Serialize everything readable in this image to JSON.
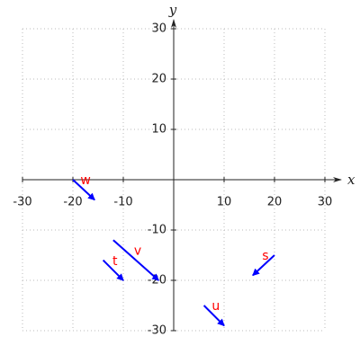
{
  "chart_data": {
    "type": "quiver",
    "x_label": "x",
    "y_label": "y",
    "xlim": [
      -30,
      30
    ],
    "ylim": [
      -30,
      30
    ],
    "xticks": [
      -30,
      -20,
      -10,
      10,
      20,
      30
    ],
    "yticks": [
      -30,
      -20,
      -10,
      10,
      20,
      30
    ],
    "grid": true,
    "color": "#0000ff",
    "label_color": "#ff0000",
    "vectors": [
      {
        "name": "w",
        "x": -20,
        "y": 0,
        "dx": 4.3,
        "dy": -4
      },
      {
        "name": "v",
        "x": -12,
        "y": -12,
        "dx": 9,
        "dy": -8
      },
      {
        "name": "t",
        "x": -14,
        "y": -16,
        "dx": 4,
        "dy": -4
      },
      {
        "name": "s",
        "x": 20,
        "y": -15,
        "dx": -4.3,
        "dy": -4
      },
      {
        "name": "u",
        "x": 6,
        "y": -25,
        "dx": 4,
        "dy": -4
      }
    ]
  }
}
